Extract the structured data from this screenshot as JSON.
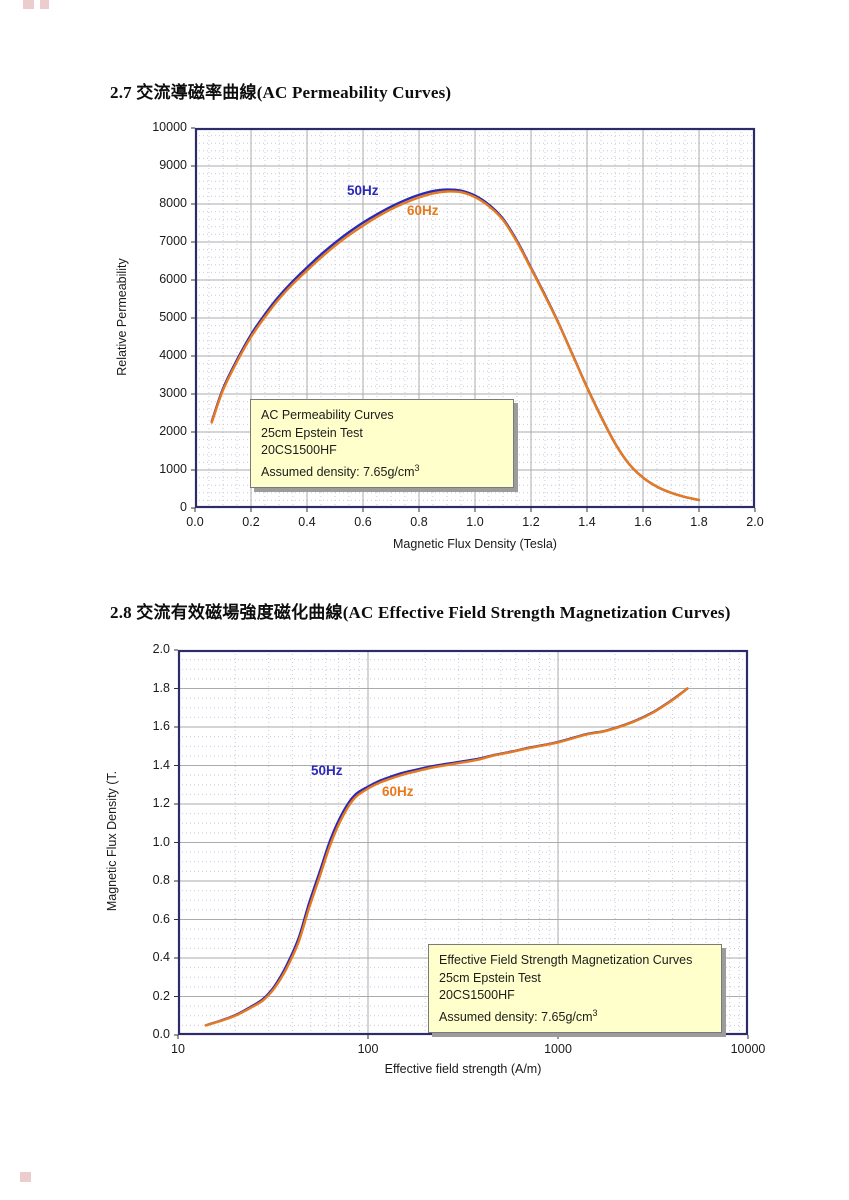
{
  "page": {
    "section_2_7_heading": "2.7  交流導磁率曲線(AC Permeability Curves)",
    "section_2_8_heading": "2.8  交流有效磁場強度磁化曲線(AC Effective Field Strength Magnetization Curves)"
  },
  "colors": {
    "plot_border": "#2c2c6a",
    "major_grid": "#ababab",
    "minor_grid": "#c9c9de",
    "tick_mark": "#333333",
    "note_background": "#ffffcc",
    "note_shadow": "#9c9c9c",
    "series_50hz": "#2a2ab8",
    "series_60hz": "#e87a1e"
  },
  "chart_data": [
    {
      "type": "line",
      "x_scale": "linear",
      "xlabel": "Magnetic Flux Density (Tesla)",
      "ylabel": "Relative Permeability",
      "xlim": [
        0,
        2
      ],
      "ylim": [
        0,
        10000
      ],
      "x_ticks": [
        "0.0",
        "0.2",
        "0.4",
        "0.6",
        "0.8",
        "1.0",
        "1.2",
        "1.4",
        "1.6",
        "1.8",
        "2.0"
      ],
      "y_ticks": [
        "0",
        "1000",
        "2000",
        "3000",
        "4000",
        "5000",
        "6000",
        "7000",
        "8000",
        "9000",
        "10000"
      ],
      "grid": "major solid + minor dotted, x minor 0.05, y minor 200",
      "legend_position": "inline labels on curves",
      "note_box": {
        "lines": [
          "AC Permeability Curves",
          "25cm Epstein Test",
          "20CS1500HF"
        ],
        "density_text": "Assumed density: 7.65g/cm",
        "density_superscript": "3"
      },
      "series": [
        {
          "name": "50Hz",
          "color": "#2a2ab8",
          "x": [
            0.06,
            0.1,
            0.15,
            0.2,
            0.25,
            0.3,
            0.35,
            0.4,
            0.45,
            0.5,
            0.55,
            0.6,
            0.65,
            0.7,
            0.75,
            0.8,
            0.85,
            0.9,
            0.95,
            1.0,
            1.05,
            1.1,
            1.15,
            1.2,
            1.25,
            1.3,
            1.35,
            1.4,
            1.45,
            1.5,
            1.55,
            1.6,
            1.65,
            1.7,
            1.75,
            1.8
          ],
          "values": [
            2280,
            3140,
            3900,
            4560,
            5100,
            5570,
            5970,
            6330,
            6670,
            6980,
            7260,
            7510,
            7730,
            7930,
            8100,
            8240,
            8340,
            8380,
            8350,
            8220,
            7980,
            7610,
            7030,
            6320,
            5600,
            4840,
            4010,
            3180,
            2410,
            1705,
            1160,
            800,
            560,
            400,
            290,
            210
          ]
        },
        {
          "name": "60Hz",
          "color": "#e87a1e",
          "x": [
            0.06,
            0.1,
            0.15,
            0.2,
            0.25,
            0.3,
            0.35,
            0.4,
            0.45,
            0.5,
            0.55,
            0.6,
            0.65,
            0.7,
            0.75,
            0.8,
            0.85,
            0.9,
            0.95,
            1.0,
            1.05,
            1.1,
            1.15,
            1.2,
            1.25,
            1.3,
            1.35,
            1.4,
            1.45,
            1.5,
            1.55,
            1.6,
            1.65,
            1.7,
            1.75,
            1.8
          ],
          "values": [
            2250,
            3100,
            3850,
            4500,
            5030,
            5500,
            5900,
            6250,
            6590,
            6900,
            7180,
            7430,
            7660,
            7860,
            8030,
            8170,
            8280,
            8330,
            8310,
            8180,
            7940,
            7580,
            7000,
            6300,
            5580,
            4830,
            4000,
            3170,
            2400,
            1700,
            1160,
            800,
            560,
            400,
            290,
            210
          ]
        }
      ]
    },
    {
      "type": "line",
      "x_scale": "log",
      "xlabel": "Effective field strength (A/m)",
      "ylabel": "Magnetic Flux Density (T.",
      "xlim": [
        10,
        10000
      ],
      "ylim": [
        0,
        2.0
      ],
      "x_ticks": [
        "10",
        "100",
        "1000",
        "10000"
      ],
      "y_ticks": [
        "0.0",
        "0.2",
        "0.4",
        "0.6",
        "0.8",
        "1.0",
        "1.2",
        "1.4",
        "1.6",
        "1.8",
        "2.0"
      ],
      "grid": "major solid at decades and 0.2, minor dotted log multiples and 0.05",
      "legend_position": "inline labels on curves",
      "note_box": {
        "lines": [
          "Effective Field Strength Magnetization Curves",
          "25cm Epstein Test",
          "20CS1500HF"
        ],
        "density_text": "Assumed density: 7.65g/cm",
        "density_superscript": "3"
      },
      "series": [
        {
          "name": "50Hz",
          "color": "#2a2ab8",
          "x": [
            14,
            17,
            20,
            24,
            28,
            32,
            37,
            43,
            49,
            56,
            64,
            74,
            85,
            100,
            115,
            130,
            150,
            180,
            220,
            290,
            380,
            450,
            570,
            700,
            1000,
            1400,
            1800,
            2400,
            3100,
            4000,
            4800
          ],
          "values": [
            0.05,
            0.077,
            0.103,
            0.145,
            0.187,
            0.25,
            0.355,
            0.5,
            0.685,
            0.855,
            1.025,
            1.16,
            1.245,
            1.29,
            1.32,
            1.34,
            1.36,
            1.378,
            1.397,
            1.416,
            1.435,
            1.452,
            1.472,
            1.492,
            1.522,
            1.562,
            1.582,
            1.622,
            1.672,
            1.742,
            1.8
          ]
        },
        {
          "name": "60Hz",
          "color": "#e87a1e",
          "x": [
            14,
            17,
            20,
            24,
            28,
            32,
            37,
            43,
            49,
            56,
            64,
            74,
            85,
            100,
            115,
            130,
            150,
            180,
            220,
            290,
            380,
            450,
            570,
            700,
            1000,
            1400,
            1800,
            2400,
            3100,
            4000,
            4800
          ],
          "values": [
            0.05,
            0.075,
            0.1,
            0.14,
            0.18,
            0.24,
            0.34,
            0.48,
            0.66,
            0.83,
            1.0,
            1.14,
            1.23,
            1.28,
            1.31,
            1.33,
            1.35,
            1.37,
            1.39,
            1.41,
            1.43,
            1.45,
            1.47,
            1.49,
            1.52,
            1.56,
            1.58,
            1.62,
            1.67,
            1.74,
            1.8
          ]
        }
      ]
    }
  ]
}
